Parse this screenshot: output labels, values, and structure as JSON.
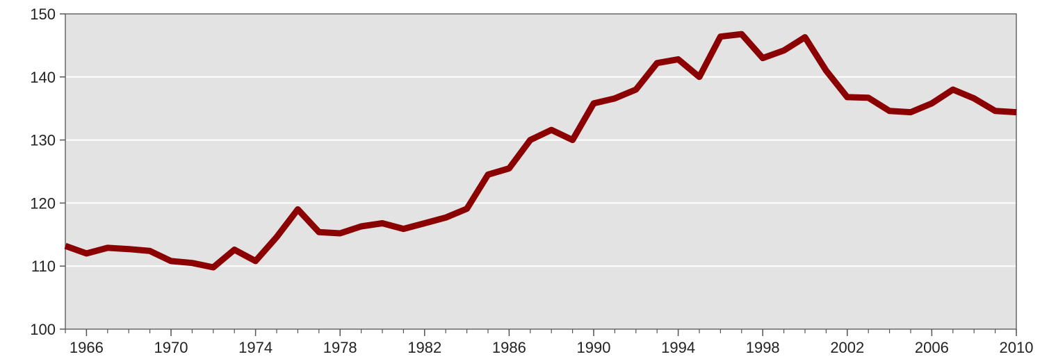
{
  "chart_data": {
    "type": "line",
    "title": "",
    "xlabel": "",
    "ylabel": "",
    "xlim": [
      1965,
      2010
    ],
    "ylim": [
      100,
      150
    ],
    "x_ticks": [
      1966,
      1970,
      1974,
      1978,
      1982,
      1986,
      1990,
      1994,
      1998,
      2002,
      2006,
      2010
    ],
    "y_ticks": [
      100,
      110,
      120,
      130,
      140,
      150
    ],
    "grid": "horizontal",
    "legend": "none",
    "line_color": "#8b0000",
    "background_color": "#e3e3e3",
    "series": [
      {
        "x": [
          1965,
          1966,
          1967,
          1968,
          1969,
          1970,
          1971,
          1972,
          1973,
          1974,
          1975,
          1976,
          1977,
          1978,
          1979,
          1980,
          1981,
          1982,
          1983,
          1984,
          1985,
          1986,
          1987,
          1988,
          1989,
          1990,
          1991,
          1992,
          1993,
          1994,
          1995,
          1996,
          1997,
          1998,
          1999,
          2000,
          2001,
          2002,
          2003,
          2004,
          2005,
          2006,
          2007,
          2008,
          2009,
          2010
        ],
        "values": [
          113.2,
          112.0,
          112.9,
          112.7,
          112.4,
          110.8,
          110.5,
          109.8,
          112.6,
          110.8,
          114.6,
          119.0,
          115.4,
          115.2,
          116.3,
          116.8,
          115.9,
          116.8,
          117.7,
          119.1,
          124.5,
          125.5,
          130.0,
          131.6,
          130.0,
          135.8,
          136.6,
          138.0,
          142.2,
          142.8,
          140.0,
          146.4,
          146.8,
          143.0,
          144.2,
          146.3,
          141.0,
          136.8,
          136.7,
          134.6,
          134.4,
          135.8,
          138.0,
          136.6,
          134.6,
          134.4
        ]
      }
    ]
  }
}
